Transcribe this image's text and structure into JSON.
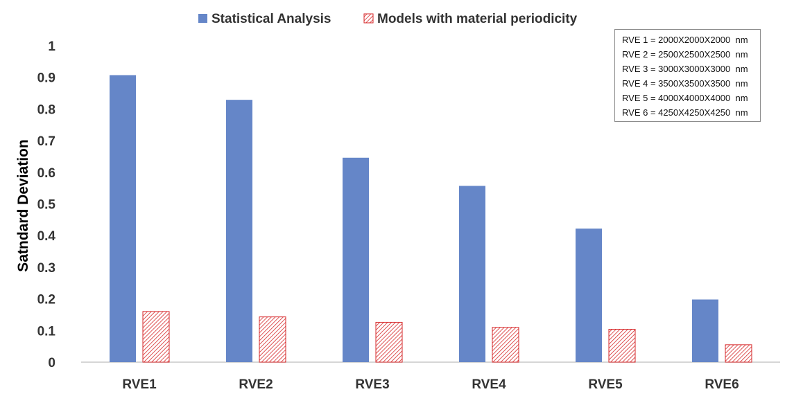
{
  "chart_data": {
    "type": "bar",
    "categories": [
      "RVE1",
      "RVE2",
      "RVE3",
      "RVE4",
      "RVE5",
      "RVE6"
    ],
    "series": [
      {
        "name": "Statistical Analysis",
        "values": [
          0.907,
          0.829,
          0.646,
          0.557,
          0.422,
          0.198
        ],
        "color": "#6586c8",
        "fill": "solid"
      },
      {
        "name": "Models with material periodicity",
        "values": [
          0.16,
          0.143,
          0.126,
          0.11,
          0.104,
          0.055
        ],
        "color": "#d62728",
        "fill": "hatched"
      }
    ],
    "title": "",
    "xlabel": "",
    "ylabel": "Satndard Deviation",
    "ylim": [
      0,
      1
    ],
    "yticks": [
      "0",
      "0.1",
      "0.2",
      "0.3",
      "0.4",
      "0.5",
      "0.6",
      "0.7",
      "0.8",
      "0.9",
      "1"
    ],
    "grid": false,
    "legend": "top-center",
    "annotation_lines": [
      "RVE 1 = 2000X2000X2000  nm",
      "RVE 2 = 2500X2500X2500  nm",
      "RVE 3 = 3000X3000X3000  nm",
      "RVE 4 = 3500X3500X3500  nm",
      "RVE 5 = 4000X4000X4000  nm",
      "RVE 6 = 4250X4250X4250  nm"
    ]
  }
}
